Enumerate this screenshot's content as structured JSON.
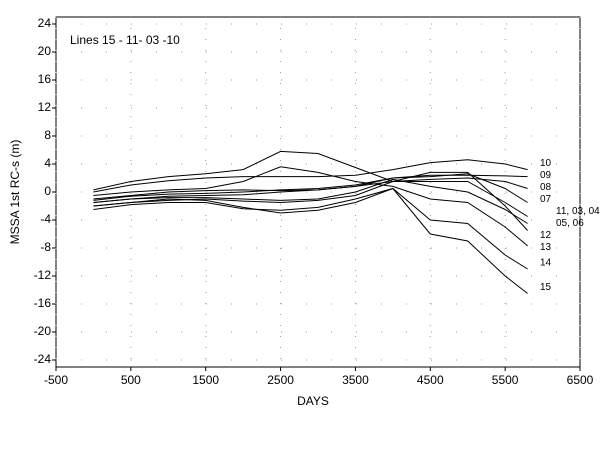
{
  "chart_data": {
    "type": "line",
    "annotation": "Lines 15 - 11- 03 -10",
    "x_label": "DAYS",
    "y_label": "MSSA 1st RC-s (m)",
    "x": [
      0,
      500,
      1000,
      1500,
      2000,
      2500,
      3000,
      3500,
      4000,
      4500,
      5000,
      5500,
      5800
    ],
    "series": [
      {
        "name": "10",
        "color": "#000000",
        "values": [
          0,
          1,
          1.6,
          2,
          2.2,
          2.2,
          2.2,
          2.4,
          3.2,
          4.2,
          4.6,
          4,
          3.2
        ]
      },
      {
        "name": "09",
        "color": "#000000",
        "values": [
          -1,
          -0.5,
          0,
          0.2,
          0.3,
          0.2,
          0.3,
          0.8,
          2,
          2.4,
          2.4,
          2.3,
          2.2
        ]
      },
      {
        "name": "08",
        "color": "#000000",
        "values": [
          -1.5,
          -1,
          -0.6,
          -0.5,
          -0.4,
          0,
          0.3,
          0.8,
          1.5,
          1.8,
          2,
          1.5,
          0.5
        ]
      },
      {
        "name": "07",
        "color": "#000000",
        "values": [
          -1.2,
          -0.6,
          -0.3,
          -0.2,
          0,
          0.3,
          0.5,
          1,
          2,
          2.2,
          2.6,
          0.5,
          -1.5
        ]
      },
      {
        "name": "11, 03, 04",
        "color": "#000000",
        "values": [
          -2,
          -1.5,
          -1.2,
          -1,
          -1.3,
          -1.5,
          -1.2,
          -0.5,
          1.5,
          1.5,
          1.5,
          -1.5,
          -3.5
        ]
      },
      {
        "name": "05, 06",
        "color": "#000000",
        "values": [
          -1.5,
          -1,
          -0.8,
          -0.8,
          -1,
          -1.2,
          -1,
          0,
          1.8,
          0.8,
          0,
          -2.5,
          -4.5
        ]
      },
      {
        "name": "12",
        "color": "#000000",
        "values": [
          0.3,
          1.5,
          2.2,
          2.6,
          3.2,
          5.8,
          5.5,
          3.5,
          1.5,
          2.8,
          2.8,
          -2,
          -5.5
        ]
      },
      {
        "name": "13",
        "color": "#000000",
        "values": [
          -0.5,
          0,
          0.3,
          0.5,
          1.5,
          3.6,
          2.8,
          1.5,
          0.8,
          -1,
          -1.5,
          -5,
          -7.7
        ]
      },
      {
        "name": "14",
        "color": "#000000",
        "values": [
          -2,
          -1.5,
          -1,
          -1.2,
          -2.2,
          -3,
          -2.6,
          -1.5,
          0.5,
          -4,
          -4.5,
          -9,
          -11
        ]
      },
      {
        "name": "15",
        "color": "#000000",
        "values": [
          -2.5,
          -1.8,
          -1.5,
          -1.5,
          -2.4,
          -2.6,
          -2.2,
          -1,
          0.5,
          -6,
          -7,
          -12,
          -14.5
        ]
      }
    ],
    "xlim": [
      -500,
      6500
    ],
    "xticks": [
      -500,
      500,
      1500,
      2500,
      3500,
      4500,
      5500,
      6500
    ],
    "ylim": [
      -25,
      25
    ],
    "yticks": [
      -24,
      -20,
      -16,
      -12,
      -8,
      -4,
      0,
      4,
      8,
      12,
      16,
      20,
      24
    ],
    "grid": true
  }
}
